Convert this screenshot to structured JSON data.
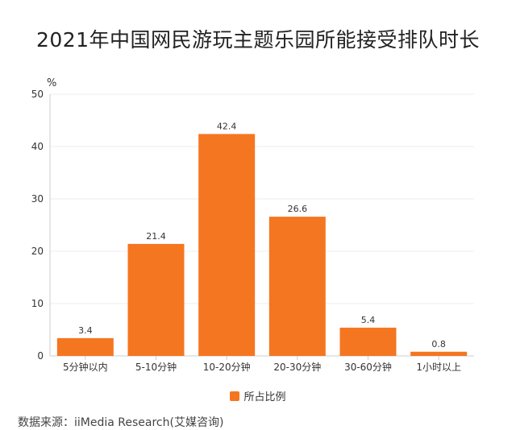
{
  "colors": {
    "bar": "#F57620",
    "axis": "#cccccc",
    "grid": "#eeeeee",
    "text": "#333333"
  },
  "chart_data": {
    "type": "bar",
    "title": "2021年中国网民游玩主题乐园所能接受排队时长",
    "ylabel": "%",
    "ylim": [
      0,
      50
    ],
    "yticks": [
      0,
      10,
      20,
      30,
      40,
      50
    ],
    "grid": true,
    "legend_position": "bottom",
    "categories": [
      "5分钟以内",
      "5-10分钟",
      "10-20分钟",
      "20-30分钟",
      "30-60分钟",
      "1小时以上"
    ],
    "series": [
      {
        "name": "所占比例",
        "values": [
          3.4,
          21.4,
          42.4,
          26.6,
          5.4,
          0.8
        ]
      }
    ]
  },
  "source": "数据来源：iiMedia Research(艾媒咨询)"
}
